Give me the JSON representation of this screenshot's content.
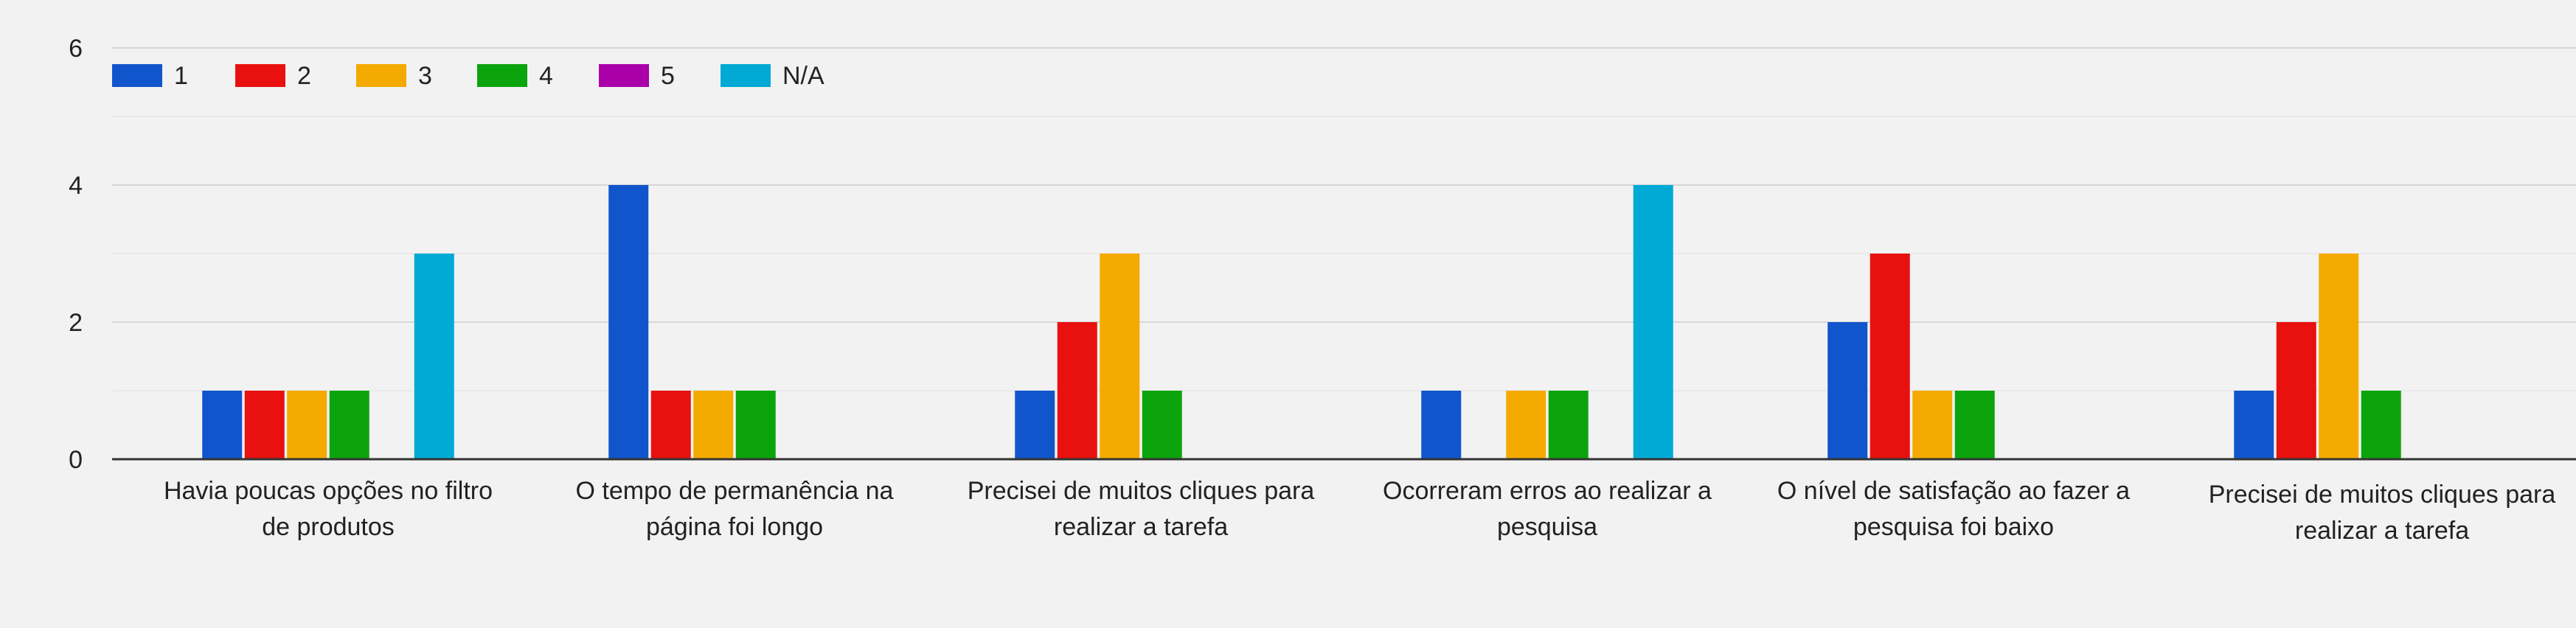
{
  "chart_data": {
    "type": "bar",
    "legend_position": "top-left",
    "grid": true,
    "ylim": [
      0,
      6
    ],
    "yticks": [
      "0",
      "2",
      "4",
      "6"
    ],
    "series": [
      {
        "name": "1",
        "color": "#1155cc",
        "values": [
          1,
          4,
          1,
          1,
          2,
          1
        ]
      },
      {
        "name": "2",
        "color": "#e8110f",
        "values": [
          1,
          1,
          2,
          0,
          3,
          2
        ]
      },
      {
        "name": "3",
        "color": "#f4aa00",
        "values": [
          1,
          1,
          3,
          1,
          1,
          3
        ]
      },
      {
        "name": "4",
        "color": "#0ca40c",
        "values": [
          1,
          1,
          1,
          1,
          1,
          1
        ]
      },
      {
        "name": "5",
        "color": "#aa00aa",
        "values": [
          0,
          0,
          0,
          0,
          0,
          0
        ]
      },
      {
        "name": "N/A",
        "color": "#00aad4",
        "values": [
          3,
          0,
          0,
          4,
          0,
          0
        ]
      }
    ],
    "categories": [
      [
        "Havia poucas opções no filtro",
        "de produtos"
      ],
      [
        "O tempo de permanência na",
        "página foi longo"
      ],
      [
        "Precisei de muitos cliques para",
        "realizar a tarefa"
      ],
      [
        "Ocorreram erros ao realizar a",
        "pesquisa"
      ],
      [
        "O nível de satisfação ao fazer a",
        "pesquisa foi baixo"
      ],
      [
        "Precisei de muitos cliques para",
        "realizar a tarefa"
      ]
    ]
  }
}
